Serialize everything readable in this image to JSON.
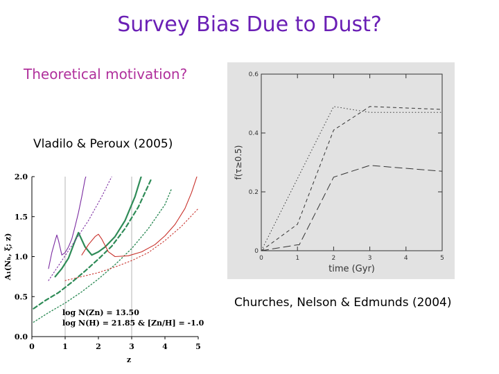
{
  "slide": {
    "title": "Survey Bias Due to Dust?",
    "subtitle": "Theoretical motivation?",
    "citation_left": "Vladilo & Peroux (2005)",
    "citation_right": "Churches, Nelson & Edmunds (2004)"
  },
  "colors": {
    "title": "#6a1fb5",
    "subtitle": "#b0309c",
    "left_plot_green": "#2e8b57",
    "left_plot_purple": "#7a2aa0",
    "left_plot_red": "#c8302a",
    "right_plot_bg": "#e2e2e2"
  },
  "chart_data": [
    {
      "type": "line",
      "xlabel": "z",
      "ylabel": "A₁(Nₕ, ξ; z)",
      "xlim": [
        0,
        5
      ],
      "ylim": [
        0,
        2
      ],
      "xticks": [
        "0",
        "1",
        "2",
        "3",
        "4",
        "5"
      ],
      "yticks": [
        "0.0",
        "0.5",
        "1.0",
        "1.5",
        "2.0"
      ],
      "vlines": [
        1,
        3
      ],
      "annotation_lines": [
        "log N(Zn) = 13.50",
        "log N(H) = 21.85  &  [Zn/H] = -1.0"
      ],
      "series": [
        {
          "color": "#2e8b57",
          "style": "solid",
          "x": [
            0.7,
            0.9,
            1.1,
            1.3,
            1.4,
            1.6,
            1.8,
            2.0,
            2.2,
            2.5,
            2.8,
            3.1,
            3.3,
            3.6
          ],
          "y": [
            0.75,
            0.85,
            0.98,
            1.2,
            1.3,
            1.12,
            1.02,
            1.06,
            1.12,
            1.25,
            1.45,
            1.75,
            2.02,
            2.4
          ]
        },
        {
          "color": "#2e8b57",
          "style": "dashed",
          "x": [
            0.05,
            0.4,
            0.8,
            1.2,
            1.6,
            2.0,
            2.4,
            2.8,
            3.2,
            3.6
          ],
          "y": [
            0.35,
            0.45,
            0.55,
            0.68,
            0.82,
            0.97,
            1.13,
            1.35,
            1.62,
            1.98
          ]
        },
        {
          "color": "#2e8b57",
          "style": "dotted",
          "x": [
            0.05,
            0.5,
            1.0,
            1.5,
            2.0,
            2.5,
            3.0,
            3.5,
            4.0,
            4.2
          ],
          "y": [
            0.18,
            0.3,
            0.42,
            0.56,
            0.72,
            0.9,
            1.1,
            1.35,
            1.65,
            1.85
          ]
        },
        {
          "color": "#7a2aa0",
          "style": "solid",
          "x": [
            0.5,
            0.6,
            0.7,
            0.75,
            0.8,
            0.9,
            1.0,
            1.1,
            1.2,
            1.3,
            1.4,
            1.5,
            1.6,
            1.7
          ],
          "y": [
            0.85,
            1.05,
            1.2,
            1.27,
            1.2,
            1.02,
            1.05,
            1.12,
            1.22,
            1.38,
            1.55,
            1.75,
            1.97,
            2.1
          ]
        },
        {
          "color": "#7a2aa0",
          "style": "dotted",
          "x": [
            0.5,
            0.9,
            1.3,
            1.7,
            2.1,
            2.4
          ],
          "y": [
            0.7,
            0.95,
            1.2,
            1.45,
            1.75,
            2.0
          ]
        },
        {
          "color": "#c8302a",
          "style": "solid",
          "x": [
            1.5,
            1.7,
            1.9,
            2.0,
            2.1,
            2.3,
            2.5,
            2.9,
            3.3,
            3.7,
            4.0,
            4.3,
            4.6,
            4.8,
            5.0
          ],
          "y": [
            1.02,
            1.15,
            1.25,
            1.28,
            1.22,
            1.06,
            1.0,
            1.01,
            1.06,
            1.15,
            1.26,
            1.4,
            1.6,
            1.8,
            2.05
          ]
        },
        {
          "color": "#c8302a",
          "style": "dotted",
          "x": [
            1.0,
            1.5,
            2.0,
            2.5,
            3.0,
            3.5,
            4.0,
            4.5,
            5.0
          ],
          "y": [
            0.7,
            0.75,
            0.8,
            0.87,
            0.95,
            1.05,
            1.2,
            1.38,
            1.6
          ]
        }
      ]
    },
    {
      "type": "line",
      "xlabel": "time (Gyr)",
      "ylabel": "f(τ≥0.5)",
      "xlim": [
        0,
        5
      ],
      "ylim": [
        0,
        0.6
      ],
      "xticks": [
        "0",
        "1",
        "2",
        "3",
        "4",
        "5"
      ],
      "yticks": [
        "0",
        "0.2",
        "0.4",
        "0.6"
      ],
      "series": [
        {
          "style": "dotted",
          "x": [
            0,
            2,
            3,
            5
          ],
          "y": [
            0,
            0.49,
            0.47,
            0.47
          ]
        },
        {
          "style": "short-dashed",
          "x": [
            0,
            1,
            2,
            3,
            5
          ],
          "y": [
            0,
            0.09,
            0.41,
            0.49,
            0.48
          ]
        },
        {
          "style": "long-dashed",
          "x": [
            0,
            1,
            1.05,
            2,
            3,
            5
          ],
          "y": [
            0,
            0.02,
            0.02,
            0.25,
            0.29,
            0.27
          ]
        }
      ]
    }
  ]
}
